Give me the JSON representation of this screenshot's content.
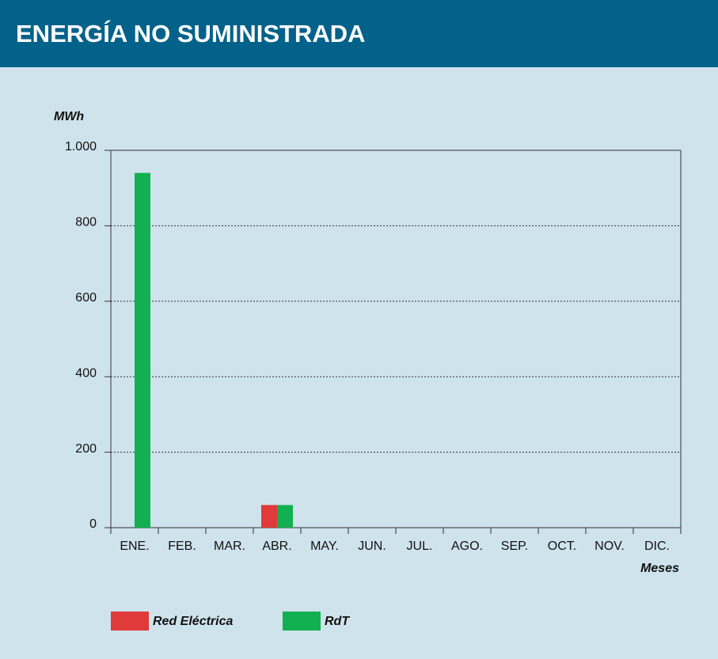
{
  "chart_data": {
    "type": "bar",
    "title": "ENERGÍA NO SUMINISTRADA",
    "y_label": "MWh",
    "x_label": "Meses",
    "categories": [
      "ENE.",
      "FEB.",
      "MAR.",
      "ABR.",
      "MAY.",
      "JUN.",
      "JUL.",
      "AGO.",
      "SEP.",
      "OCT.",
      "NOV.",
      "DIC."
    ],
    "series": [
      {
        "name": "Red Eléctrica",
        "color": "#e03a3a",
        "values": [
          0,
          0,
          0,
          60,
          0,
          0,
          0,
          0,
          0,
          0,
          0,
          0
        ]
      },
      {
        "name": "RdT",
        "color": "#12b050",
        "values": [
          940,
          0,
          0,
          60,
          0,
          0,
          0,
          0,
          0,
          0,
          0,
          0
        ]
      }
    ],
    "ylim": [
      0,
      1000
    ],
    "yticks": [
      0,
      200,
      400,
      600,
      800,
      {
        "value": 1000,
        "label": "1.000"
      }
    ],
    "grid": true
  }
}
